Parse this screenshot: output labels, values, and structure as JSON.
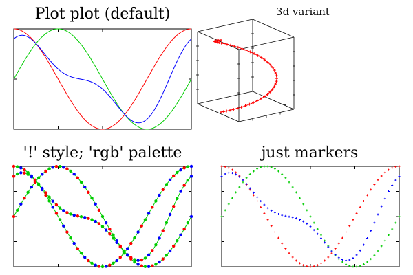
{
  "chart_data": [
    {
      "type": "line",
      "title": "Plot plot (default)",
      "x_range": [
        0,
        6.2832
      ],
      "ylim": [
        -1,
        1
      ],
      "xlabel": "",
      "ylabel": "",
      "grid": false,
      "series": [
        {
          "function": "cos(x)",
          "color": "#ff0000",
          "style": "line"
        },
        {
          "function": "sin(x)",
          "color": "#00cc00",
          "style": "line"
        },
        {
          "function": "(cos(x)+sin(x))/2 + 0.3*cos(2x)",
          "color": "#0000ff",
          "style": "line"
        }
      ]
    },
    {
      "type": "line3d",
      "title": "3d variant",
      "series": [
        {
          "function": "x=cos(t), y=sin(t), z=t",
          "t_range": [
            0,
            6.2832
          ],
          "color": "#ff0000",
          "style": "line+markers"
        }
      ]
    },
    {
      "type": "line",
      "title": "'!' style; 'rgb' palette",
      "x_range": [
        0,
        6.2832
      ],
      "ylim": [
        -1,
        1
      ],
      "grid": false,
      "palette": [
        "#ff0000",
        "#00cc00",
        "#0000ff"
      ],
      "series": [
        {
          "function": "cos(x)",
          "color": "#00cc00",
          "style": "line+markers",
          "marker_colors": [
            "#ff0000",
            "#00cc00",
            "#0000ff"
          ]
        },
        {
          "function": "sin(x)",
          "color": "#00cc00",
          "style": "line+markers",
          "marker_colors": [
            "#ff0000",
            "#00cc00",
            "#0000ff"
          ]
        },
        {
          "function": "(cos(x)+sin(x))/2 + 0.3*cos(2x)",
          "color": "#00cc00",
          "style": "line+markers",
          "marker_colors": [
            "#ff0000",
            "#00cc00",
            "#0000ff"
          ]
        }
      ]
    },
    {
      "type": "scatter",
      "title": "just markers",
      "x_range": [
        0,
        6.2832
      ],
      "ylim": [
        -1,
        1
      ],
      "grid": false,
      "series": [
        {
          "function": "cos(x)",
          "color": "#ff0000",
          "style": "markers",
          "marker": "+"
        },
        {
          "function": "sin(x)",
          "color": "#00cc00",
          "style": "markers",
          "marker": "+"
        },
        {
          "function": "(cos(x)+sin(x))/2 + 0.3*cos(2x)",
          "color": "#0000ff",
          "style": "markers",
          "marker": "+"
        }
      ]
    }
  ]
}
